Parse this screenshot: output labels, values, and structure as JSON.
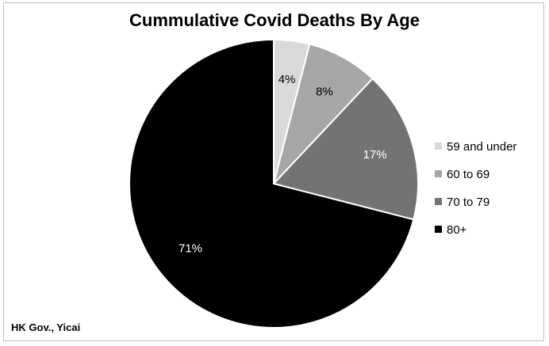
{
  "chart_data": {
    "type": "pie",
    "title": "Cummulative Covid Deaths By Age",
    "categories": [
      "59 and under",
      "60 to 69",
      "70 to 79",
      "80+"
    ],
    "values": [
      4,
      8,
      17,
      71
    ],
    "value_labels": [
      "4%",
      "8%",
      "17%",
      "71%"
    ],
    "colors": [
      "#d9d9d9",
      "#a6a6a6",
      "#737373",
      "#000000"
    ],
    "label_colors": [
      "#000000",
      "#000000",
      "#ffffff",
      "#ffffff"
    ],
    "legend_position": "right",
    "source": "HK Gov., Yicai"
  }
}
